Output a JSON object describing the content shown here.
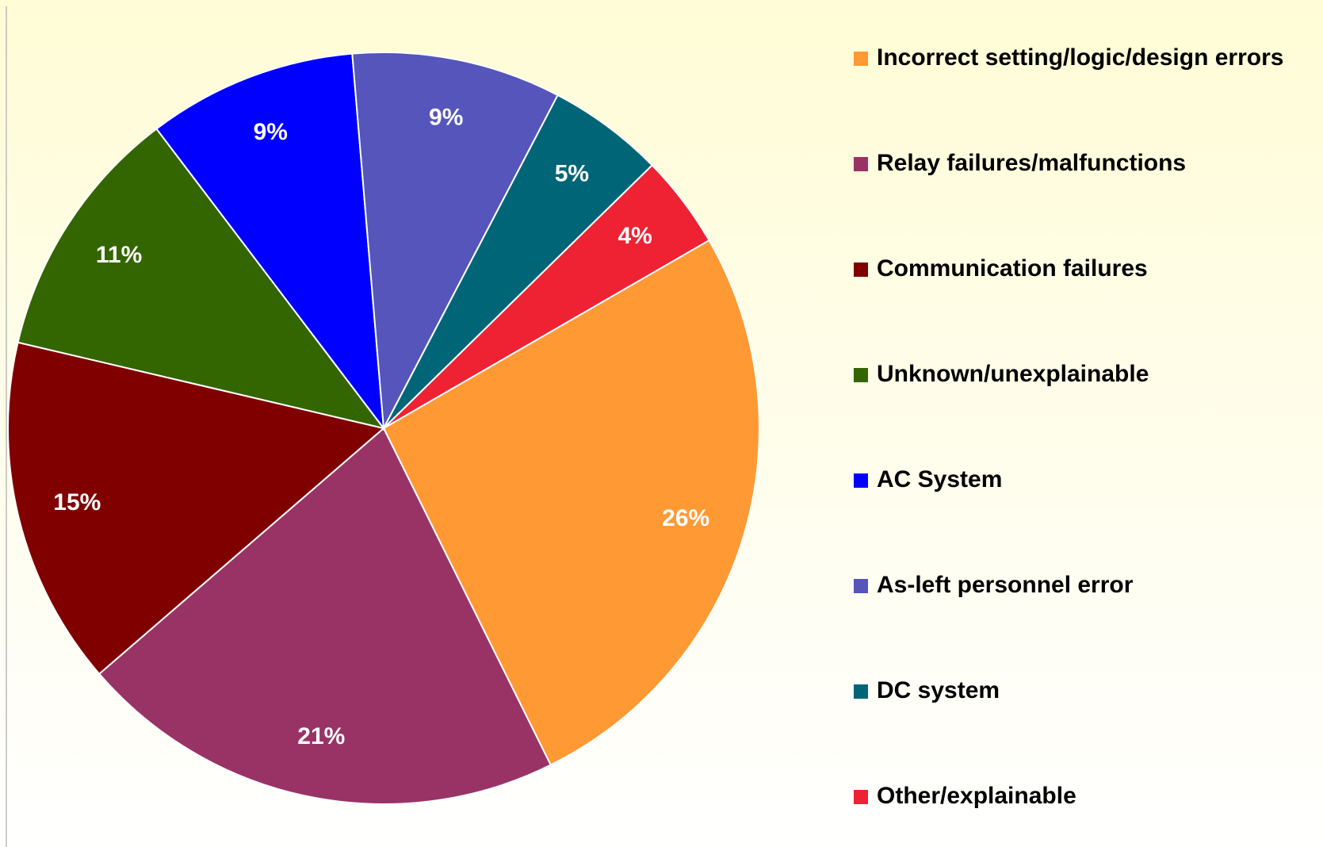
{
  "chart_data": {
    "type": "pie",
    "categories": [
      "Incorrect setting/logic/design errors",
      "Relay failures/malfunctions",
      "Communication failures",
      "Unknown/unexplainable",
      "AC System",
      "As-left personnel error",
      "DC system",
      "Other/explainable"
    ],
    "values": [
      26,
      21,
      15,
      11,
      9,
      9,
      5,
      4
    ],
    "value_labels": [
      "26%",
      "21%",
      "15%",
      "11%",
      "9%",
      "9%",
      "5%",
      "4%"
    ],
    "colors": [
      "#ff9933",
      "#993366",
      "#800000",
      "#336600",
      "#0000ff",
      "#5555bb",
      "#006677",
      "#ee2233"
    ],
    "legend": "right"
  }
}
